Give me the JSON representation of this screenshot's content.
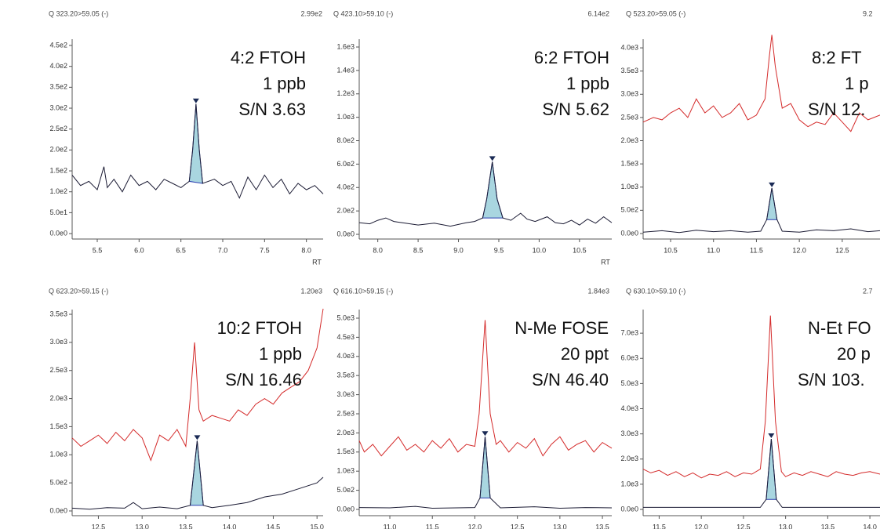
{
  "chart_data": [
    {
      "type": "line",
      "header": "Q 323.20>59.05 (-)",
      "max": "2.99e2",
      "annotations": [
        "4:2 FTOH",
        "1 ppb",
        "S/N 3.63"
      ],
      "x_label": "RT",
      "xlim": [
        5.2,
        8.2
      ],
      "ylim": [
        -13,
        465
      ],
      "xticks": [
        5.5,
        {
          "value": 6,
          "label": "6.0"
        },
        6.5,
        {
          "value": 7,
          "label": "7.0"
        },
        7.5,
        {
          "value": 8,
          "label": "8.0"
        }
      ],
      "yticks": [
        {
          "value": 0,
          "label": "0.0e0"
        },
        {
          "value": 50,
          "label": "5.0e1"
        },
        {
          "value": 100,
          "label": "1.0e2"
        },
        {
          "value": 150,
          "label": "1.5e2"
        },
        {
          "value": 200,
          "label": "2.0e2"
        },
        {
          "value": 250,
          "label": "2.5e2"
        },
        {
          "value": 300,
          "label": "3.0e2"
        },
        {
          "value": 350,
          "label": "3.5e2"
        },
        {
          "value": 400,
          "label": "4.0e2"
        },
        {
          "value": 450,
          "label": "4.5e2"
        }
      ],
      "traces": [
        {
          "color": "#1a1a33",
          "x": [
            5.2,
            5.3,
            5.4,
            5.5,
            5.58,
            5.62,
            5.7,
            5.8,
            5.9,
            6.0,
            6.1,
            6.2,
            6.3,
            6.4,
            6.5,
            6.6,
            6.64,
            6.68,
            6.72,
            6.76,
            6.9,
            7.0,
            7.1,
            7.2,
            7.3,
            7.4,
            7.5,
            7.6,
            7.7,
            7.8,
            7.9,
            8.0,
            8.1,
            8.2
          ],
          "y": [
            140,
            115,
            125,
            105,
            160,
            110,
            130,
            100,
            140,
            115,
            125,
            105,
            130,
            120,
            110,
            125,
            200,
            310,
            200,
            120,
            130,
            115,
            125,
            85,
            135,
            105,
            140,
            110,
            130,
            95,
            120,
            105,
            115,
            95
          ]
        }
      ],
      "peak": {
        "x": 6.68,
        "y": 310,
        "start": 6.6,
        "end": 6.76
      }
    },
    {
      "type": "line",
      "header": "Q 423.10>59.10 (-)",
      "max": "6.14e2",
      "annotations": [
        "6:2 FTOH",
        "1 ppb",
        "S/N 5.62"
      ],
      "x_label": "RT",
      "xlim": [
        7.77,
        10.9
      ],
      "ylim": [
        -40,
        1667
      ],
      "xticks": [
        {
          "value": 8,
          "label": "8.0"
        },
        8.5,
        {
          "value": 9,
          "label": "9.0"
        },
        9.5,
        {
          "value": 10,
          "label": "10.0"
        },
        10.5
      ],
      "yticks": [
        {
          "value": 0,
          "label": "0.0e0"
        },
        {
          "value": 200,
          "label": "2.0e2"
        },
        {
          "value": 400,
          "label": "4.0e2"
        },
        {
          "value": 600,
          "label": "6.0e2"
        },
        {
          "value": 800,
          "label": "8.0e2"
        },
        {
          "value": 1000,
          "label": "1.0e3"
        },
        {
          "value": 1200,
          "label": "1.2e3"
        },
        {
          "value": 1400,
          "label": "1.4e3"
        },
        {
          "value": 1600,
          "label": "1.6e3"
        }
      ],
      "traces": [
        {
          "color": "#1a1a33",
          "x": [
            7.77,
            7.9,
            8.0,
            8.1,
            8.2,
            8.3,
            8.5,
            8.7,
            8.9,
            9.1,
            9.2,
            9.3,
            9.35,
            9.42,
            9.48,
            9.55,
            9.65,
            9.77,
            9.85,
            9.95,
            10.1,
            10.2,
            10.3,
            10.4,
            10.5,
            10.6,
            10.7,
            10.8,
            10.9
          ],
          "y": [
            100,
            90,
            120,
            140,
            110,
            100,
            80,
            95,
            70,
            100,
            110,
            140,
            300,
            620,
            300,
            140,
            120,
            180,
            130,
            110,
            150,
            100,
            90,
            120,
            80,
            130,
            95,
            150,
            100
          ]
        }
      ],
      "peak": {
        "x": 9.42,
        "y": 620,
        "start": 9.3,
        "end": 9.55
      }
    },
    {
      "type": "line",
      "header": "Q 523.20>59.05 (-)",
      "max": "9.2",
      "annotations": [
        "8:2 FT",
        "1 p",
        "S/N 12."
      ],
      "xlim": [
        10.18,
        12.94
      ],
      "ylim": [
        -119,
        4187
      ],
      "xticks": [
        10.5,
        {
          "value": 11,
          "label": "11.0"
        },
        11.5,
        {
          "value": 12,
          "label": "12.0"
        },
        12.5
      ],
      "yticks": [
        {
          "value": 0,
          "label": "0.0e0"
        },
        {
          "value": 500,
          "label": "5.0e2"
        },
        {
          "value": 1000,
          "label": "1.0e3"
        },
        {
          "value": 1500,
          "label": "1.5e3"
        },
        {
          "value": 2000,
          "label": "2.0e3"
        },
        {
          "value": 2500,
          "label": "2.5e3"
        },
        {
          "value": 3000,
          "label": "3.0e3"
        },
        {
          "value": 3500,
          "label": "3.5e3"
        },
        {
          "value": 4000,
          "label": "4.0e3"
        }
      ],
      "traces": [
        {
          "color": "#d42a2a",
          "x": [
            10.18,
            10.3,
            10.4,
            10.5,
            10.6,
            10.7,
            10.8,
            10.9,
            11.0,
            11.1,
            11.2,
            11.3,
            11.4,
            11.5,
            11.6,
            11.65,
            11.68,
            11.72,
            11.8,
            11.9,
            12.0,
            12.1,
            12.2,
            12.3,
            12.4,
            12.5,
            12.6,
            12.7,
            12.8,
            12.94
          ],
          "y": [
            2400,
            2500,
            2450,
            2600,
            2700,
            2500,
            2900,
            2600,
            2750,
            2500,
            2600,
            2800,
            2450,
            2550,
            2900,
            3800,
            4280,
            3600,
            2700,
            2800,
            2450,
            2300,
            2400,
            2350,
            2600,
            2400,
            2200,
            2600,
            2450,
            2550
          ]
        },
        {
          "color": "#1a1a33",
          "x": [
            10.18,
            10.4,
            10.6,
            10.8,
            11.0,
            11.2,
            11.4,
            11.55,
            11.62,
            11.68,
            11.74,
            11.8,
            12.0,
            12.2,
            12.4,
            12.6,
            12.8,
            12.94
          ],
          "y": [
            30,
            60,
            20,
            70,
            40,
            60,
            30,
            50,
            300,
            980,
            300,
            50,
            30,
            80,
            60,
            100,
            40,
            60
          ]
        }
      ],
      "peak": {
        "x": 11.68,
        "y": 980,
        "start": 11.62,
        "end": 11.74
      }
    },
    {
      "type": "line",
      "header": "Q 623.20>59.15 (-)",
      "max": "1.20e3",
      "annotations": [
        "10:2 FTOH",
        "1 ppb",
        "S/N 16.46"
      ],
      "xlim": [
        12.2,
        15.07
      ],
      "ylim": [
        -84,
        3584
      ],
      "xticks": [
        12.5,
        {
          "value": 13,
          "label": "13.0"
        },
        13.5,
        {
          "value": 14,
          "label": "14.0"
        },
        14.5,
        {
          "value": 15,
          "label": "15.0"
        }
      ],
      "yticks": [
        {
          "value": 0,
          "label": "0.0e0"
        },
        {
          "value": 500,
          "label": "5.0e2"
        },
        {
          "value": 1000,
          "label": "1.0e3"
        },
        {
          "value": 1500,
          "label": "1.5e3"
        },
        {
          "value": 2000,
          "label": "2.0e3"
        },
        {
          "value": 2500,
          "label": "2.5e3"
        },
        {
          "value": 3000,
          "label": "3.0e3"
        },
        {
          "value": 3500,
          "label": "3.5e3"
        }
      ],
      "traces": [
        {
          "color": "#d42a2a",
          "x": [
            12.2,
            12.3,
            12.4,
            12.5,
            12.6,
            12.7,
            12.8,
            12.9,
            13.0,
            13.1,
            13.2,
            13.3,
            13.4,
            13.5,
            13.55,
            13.6,
            13.65,
            13.7,
            13.8,
            13.9,
            14.0,
            14.1,
            14.2,
            14.3,
            14.4,
            14.5,
            14.6,
            14.7,
            14.8,
            14.9,
            15.0,
            15.07
          ],
          "y": [
            1300,
            1150,
            1250,
            1350,
            1200,
            1400,
            1250,
            1450,
            1300,
            900,
            1350,
            1250,
            1450,
            1150,
            2000,
            3000,
            1800,
            1600,
            1700,
            1650,
            1600,
            1800,
            1700,
            1900,
            2000,
            1900,
            2100,
            2200,
            2300,
            2500,
            2900,
            3600
          ]
        },
        {
          "color": "#1a1a33",
          "x": [
            12.2,
            12.4,
            12.6,
            12.8,
            12.9,
            13.0,
            13.2,
            13.4,
            13.55,
            13.63,
            13.7,
            13.8,
            14.0,
            14.2,
            14.4,
            14.6,
            14.8,
            15.0,
            15.07
          ],
          "y": [
            50,
            30,
            60,
            50,
            150,
            40,
            70,
            40,
            100,
            1250,
            100,
            60,
            100,
            150,
            250,
            300,
            400,
            500,
            600
          ]
        }
      ],
      "peak": {
        "x": 13.63,
        "y": 1250,
        "start": 13.55,
        "end": 13.7
      }
    },
    {
      "type": "line",
      "header": "Q 616.10>59.15 (-)",
      "max": "1.84e3",
      "annotations": [
        "N-Me FOSE",
        "20 ppt",
        "S/N 46.40"
      ],
      "xlim": [
        10.64,
        13.61
      ],
      "ylim": [
        -164,
        5225
      ],
      "xticks": [
        {
          "value": 11,
          "label": "11.0"
        },
        11.5,
        {
          "value": 12,
          "label": "12.0"
        },
        12.5,
        {
          "value": 13,
          "label": "13.0"
        },
        13.5
      ],
      "yticks": [
        {
          "value": 0,
          "label": "0.0e0"
        },
        {
          "value": 500,
          "label": "5.0e2"
        },
        {
          "value": 1000,
          "label": "1.0e3"
        },
        {
          "value": 1500,
          "label": "1.5e3"
        },
        {
          "value": 2000,
          "label": "2.0e3"
        },
        {
          "value": 2500,
          "label": "2.5e3"
        },
        {
          "value": 3000,
          "label": "3.0e3"
        },
        {
          "value": 3500,
          "label": "3.5e3"
        },
        {
          "value": 4000,
          "label": "4.0e3"
        },
        {
          "value": 4500,
          "label": "4.5e3"
        },
        {
          "value": 5000,
          "label": "5.0e3"
        }
      ],
      "traces": [
        {
          "color": "#d42a2a",
          "x": [
            10.64,
            10.7,
            10.8,
            10.9,
            11.0,
            11.1,
            11.2,
            11.3,
            11.4,
            11.5,
            11.6,
            11.7,
            11.8,
            11.9,
            12.0,
            12.05,
            12.12,
            12.18,
            12.25,
            12.3,
            12.4,
            12.5,
            12.6,
            12.7,
            12.8,
            12.9,
            13.0,
            13.1,
            13.2,
            13.3,
            13.4,
            13.5,
            13.61
          ],
          "y": [
            1800,
            1500,
            1700,
            1400,
            1650,
            1900,
            1550,
            1700,
            1500,
            1800,
            1600,
            1850,
            1500,
            1700,
            1650,
            2500,
            4950,
            2500,
            1700,
            1800,
            1500,
            1750,
            1600,
            1850,
            1400,
            1700,
            1900,
            1550,
            1700,
            1800,
            1500,
            1750,
            1600
          ]
        },
        {
          "color": "#1a1a33",
          "x": [
            10.64,
            11.0,
            11.3,
            11.5,
            12.0,
            12.06,
            12.12,
            12.18,
            12.3,
            12.7,
            13.0,
            13.3,
            13.61
          ],
          "y": [
            50,
            40,
            80,
            30,
            50,
            300,
            1900,
            300,
            40,
            70,
            30,
            50,
            40
          ]
        }
      ],
      "peak": {
        "x": 12.12,
        "y": 1900,
        "start": 12.06,
        "end": 12.18
      }
    },
    {
      "type": "line",
      "header": "Q 630.10>59.10 (-)",
      "max": "2.7",
      "annotations": [
        "N-Et FO",
        "20 p",
        "S/N 103."
      ],
      "xlim": [
        11.31,
        14.12
      ],
      "ylim": [
        -249,
        7938
      ],
      "xticks": [
        11.5,
        {
          "value": 12,
          "label": "12.0"
        },
        12.5,
        {
          "value": 13,
          "label": "13.0"
        },
        13.5,
        {
          "value": 14,
          "label": "14.0"
        }
      ],
      "yticks": [
        {
          "value": 0,
          "label": "0.0e0"
        },
        {
          "value": 1000,
          "label": "1.0e3"
        },
        {
          "value": 2000,
          "label": "2.0e3"
        },
        {
          "value": 3000,
          "label": "3.0e3"
        },
        {
          "value": 4000,
          "label": "4.0e3"
        },
        {
          "value": 5000,
          "label": "5.0e3"
        },
        {
          "value": 6000,
          "label": "6.0e3"
        },
        {
          "value": 7000,
          "label": "7.0e3"
        }
      ],
      "traces": [
        {
          "color": "#d42a2a",
          "x": [
            11.31,
            11.4,
            11.5,
            11.6,
            11.7,
            11.8,
            11.9,
            12.0,
            12.1,
            12.2,
            12.3,
            12.4,
            12.5,
            12.6,
            12.7,
            12.76,
            12.82,
            12.88,
            12.95,
            13.0,
            13.1,
            13.2,
            13.3,
            13.4,
            13.5,
            13.6,
            13.7,
            13.8,
            13.9,
            14.0,
            14.12
          ],
          "y": [
            1600,
            1450,
            1550,
            1350,
            1500,
            1300,
            1450,
            1250,
            1400,
            1350,
            1500,
            1300,
            1450,
            1400,
            1600,
            3500,
            7700,
            3500,
            1500,
            1300,
            1450,
            1350,
            1500,
            1400,
            1300,
            1500,
            1400,
            1350,
            1450,
            1500,
            1400
          ]
        },
        {
          "color": "#1a1a33",
          "x": [
            11.31,
            12.0,
            12.7,
            12.77,
            12.83,
            12.89,
            12.96,
            13.5,
            14.12
          ],
          "y": [
            80,
            80,
            80,
            400,
            2800,
            400,
            80,
            80,
            80
          ]
        }
      ],
      "peak": {
        "x": 12.83,
        "y": 2800,
        "start": 12.77,
        "end": 12.89
      }
    }
  ]
}
